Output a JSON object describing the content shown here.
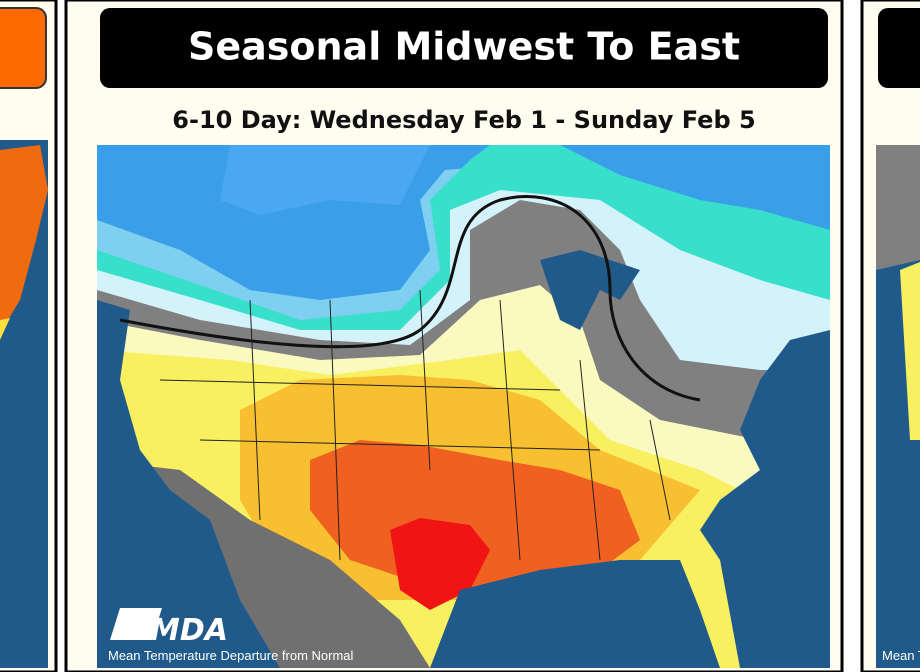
{
  "card": {
    "title": "Seasonal Midwest To East",
    "subtitle": "6-10 Day: Wednesday Feb 1 - Sunday Feb 5",
    "logo": "MDA",
    "caption": "Mean Temperature Departure from Normal"
  }
}
